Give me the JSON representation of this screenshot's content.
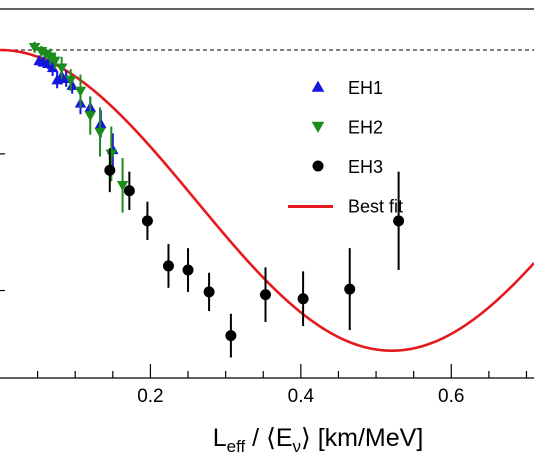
{
  "chart_data": {
    "type": "scatter",
    "xlabel": {
      "main": "L",
      "sub": "eff",
      "mid": " / ⟨E",
      "sub2": "ν",
      "end": "⟩ [km/MeV]"
    },
    "x_tick_labels": [
      "0.2",
      "0.4",
      "0.6"
    ],
    "x_ticks": [
      0.2,
      0.4,
      0.6
    ],
    "xlim": [
      0.0,
      0.71
    ],
    "ylim": [
      0.88,
      1.015
    ],
    "reference_line_y": 1.0,
    "grid": false,
    "legend_position": "top-right",
    "series": [
      {
        "name": "EH1",
        "marker": "triangle-up",
        "color": "#1515e0",
        "points": [
          [
            0.052,
            0.996,
            0.002
          ],
          [
            0.058,
            0.9955,
            0.002
          ],
          [
            0.064,
            0.995,
            0.002
          ],
          [
            0.07,
            0.9935,
            0.003
          ],
          [
            0.076,
            0.989,
            0.003
          ],
          [
            0.082,
            0.9905,
            0.003
          ],
          [
            0.088,
            0.9895,
            0.003
          ],
          [
            0.096,
            0.987,
            0.003
          ],
          [
            0.107,
            0.9805,
            0.004
          ],
          [
            0.12,
            0.979,
            0.004
          ],
          [
            0.134,
            0.973,
            0.005
          ],
          [
            0.15,
            0.9635,
            0.006
          ]
        ]
      },
      {
        "name": "EH2",
        "marker": "triangle-down",
        "color": "#1c8c1c",
        "points": [
          [
            0.046,
            1.001,
            0.002
          ],
          [
            0.055,
            0.9995,
            0.002
          ],
          [
            0.061,
            0.9985,
            0.002
          ],
          [
            0.067,
            0.9975,
            0.003
          ],
          [
            0.073,
            0.996,
            0.003
          ],
          [
            0.082,
            0.9935,
            0.004
          ],
          [
            0.094,
            0.989,
            0.004
          ],
          [
            0.107,
            0.985,
            0.006
          ],
          [
            0.12,
            0.976,
            0.007
          ],
          [
            0.133,
            0.97,
            0.009
          ],
          [
            0.148,
            0.962,
            0.01
          ],
          [
            0.163,
            0.9505,
            0.01
          ]
        ]
      },
      {
        "name": "EH3",
        "marker": "circle",
        "color": "#000000",
        "points": [
          [
            0.146,
            0.956,
            0.008
          ],
          [
            0.172,
            0.9485,
            0.007
          ],
          [
            0.196,
            0.9375,
            0.007
          ],
          [
            0.224,
            0.921,
            0.008
          ],
          [
            0.25,
            0.9195,
            0.008
          ],
          [
            0.278,
            0.9115,
            0.007
          ],
          [
            0.307,
            0.8955,
            0.008
          ],
          [
            0.353,
            0.9105,
            0.01
          ],
          [
            0.403,
            0.909,
            0.01
          ],
          [
            0.465,
            0.9125,
            0.015
          ],
          [
            0.53,
            0.9375,
            0.018
          ]
        ]
      }
    ],
    "fit": {
      "name": "Best fit",
      "color": "#e41a1c",
      "model": "1 - A * sin^2(1.267 * dm2 * x * 1000)",
      "A": 0.11,
      "dm2": 0.00238
    },
    "legend": [
      {
        "label": "EH1"
      },
      {
        "label": "EH2"
      },
      {
        "label": "EH3"
      },
      {
        "label": "Best fit"
      }
    ]
  }
}
